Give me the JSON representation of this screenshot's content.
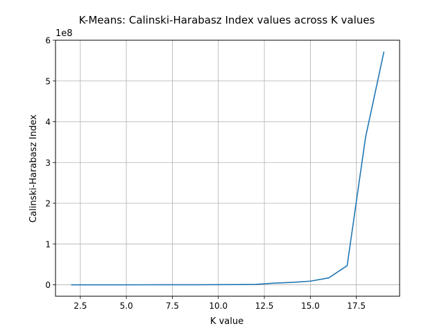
{
  "chart_data": {
    "type": "line",
    "title": "K-Means: Calinski-Harabasz Index values across K values",
    "xlabel": "K value",
    "ylabel": "Calinski-Harabasz Index",
    "y_offset_label": "1e8",
    "xlim": [
      1.15,
      19.85
    ],
    "ylim": [
      -0.28,
      6.0
    ],
    "y_scale": 100000000,
    "grid": true,
    "x_ticks": [
      2.5,
      5.0,
      7.5,
      10.0,
      12.5,
      15.0,
      17.5
    ],
    "x_tick_labels": [
      "2.5",
      "5.0",
      "7.5",
      "10.0",
      "12.5",
      "15.0",
      "17.5"
    ],
    "y_ticks": [
      0,
      1,
      2,
      3,
      4,
      5,
      6
    ],
    "y_tick_labels": [
      "0",
      "1",
      "2",
      "3",
      "4",
      "5",
      "6"
    ],
    "series": [
      {
        "color": "#1f77b4",
        "x": [
          2,
          3,
          4,
          5,
          6,
          7,
          8,
          9,
          10,
          11,
          12,
          13,
          14,
          15,
          16,
          17,
          18,
          19
        ],
        "y": [
          0.0001,
          0.0002,
          0.0003,
          0.0005,
          0.0008,
          0.0012,
          0.0017,
          0.0025,
          0.004,
          0.006,
          0.01,
          0.04,
          0.06,
          0.09,
          0.17,
          0.47,
          3.62,
          5.72
        ]
      }
    ]
  }
}
